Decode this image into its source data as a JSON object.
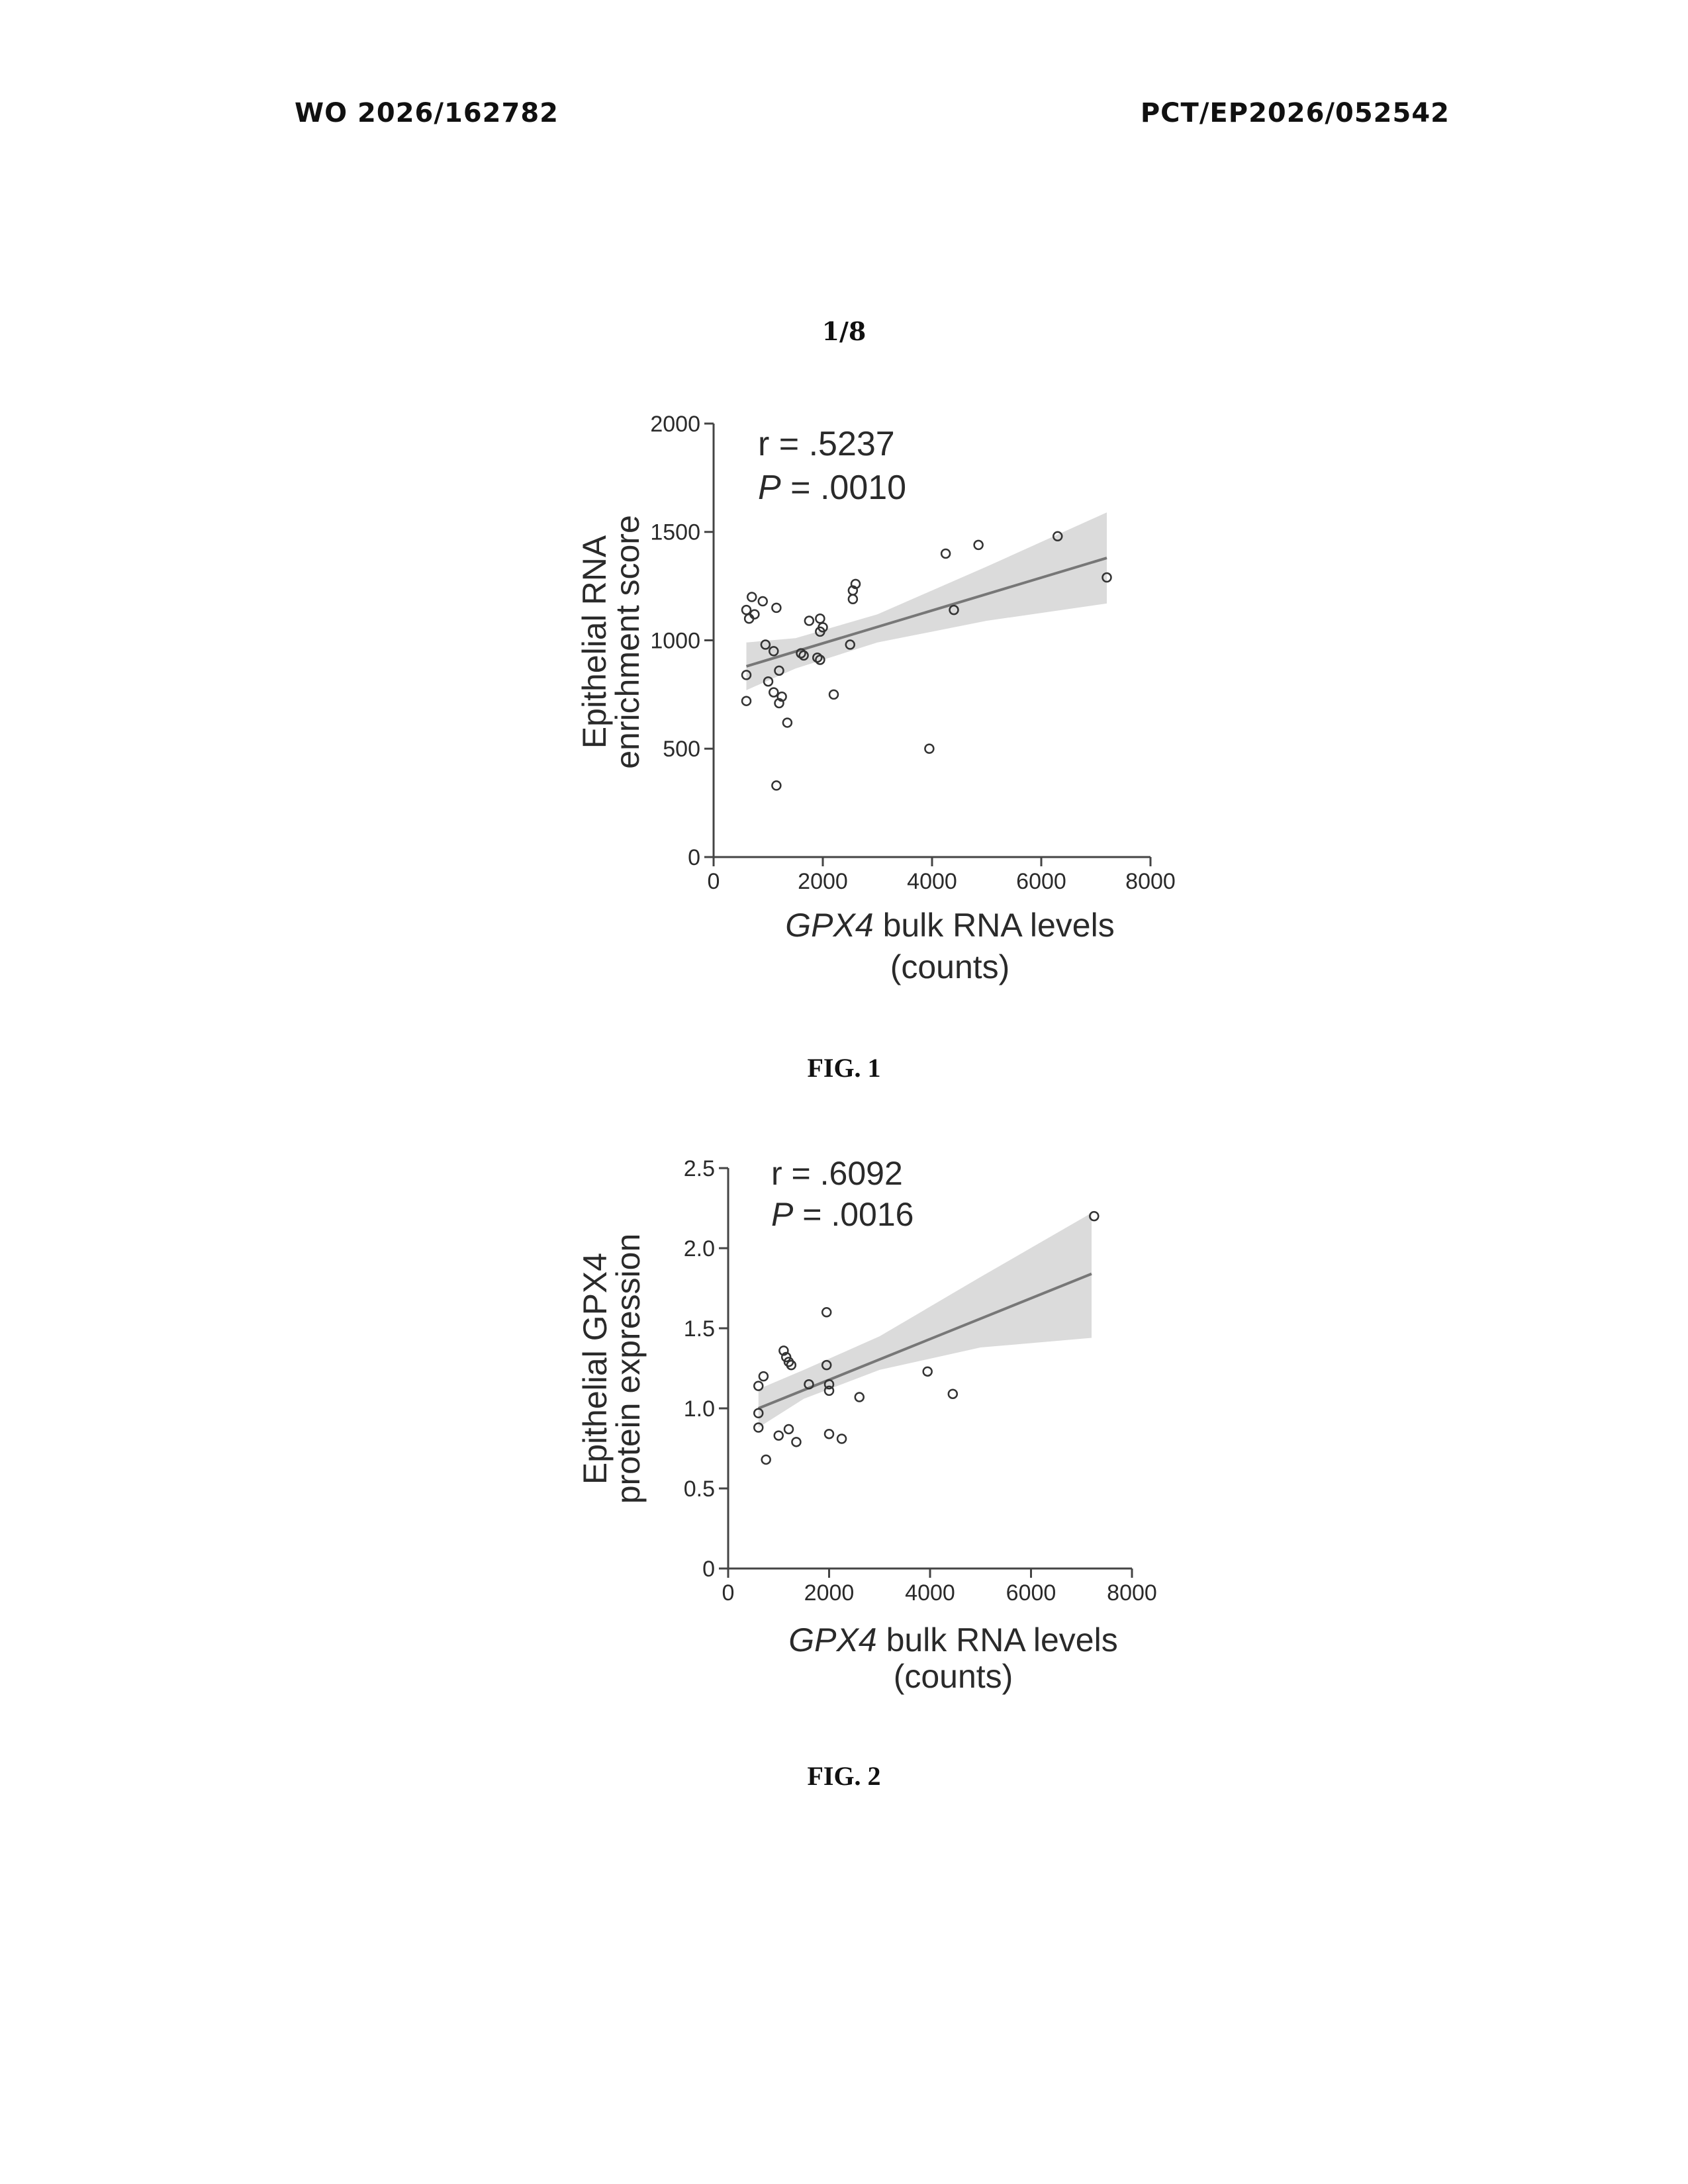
{
  "header": {
    "publication_number": "WO 2026/162782",
    "application_number": "PCT/EP2026/052542"
  },
  "sheet_label": "1/8",
  "figures": [
    {
      "caption": "FIG. 1"
    },
    {
      "caption": "FIG. 2"
    }
  ],
  "chart_data": [
    {
      "type": "scatter",
      "ylabel_lines": [
        "Epithelial RNA",
        "enrichment score"
      ],
      "xlabel_italic": "GPX4",
      "xlabel_rest": " bulk RNA levels",
      "xlabel_line2": "(counts)",
      "stat_r": "r = .5237",
      "stat_p_symbol": "P",
      "stat_p_rest": " = .0010",
      "xlim": [
        0,
        8000
      ],
      "ylim": [
        0,
        2000
      ],
      "xticks": [
        "0",
        "2000",
        "4000",
        "6000",
        "8000"
      ],
      "yticks": [
        "0",
        "500",
        "1000",
        "1500",
        "2000"
      ],
      "regression": {
        "x": [
          600,
          7200
        ],
        "y": [
          880,
          1380
        ]
      },
      "confidence_band": {
        "x": [
          600,
          1500,
          3000,
          5000,
          7200
        ],
        "lower": [
          770,
          870,
          990,
          1090,
          1170
        ],
        "upper": [
          990,
          1010,
          1120,
          1340,
          1590
        ]
      },
      "points": [
        {
          "x": 600,
          "y": 1140
        },
        {
          "x": 700,
          "y": 1200
        },
        {
          "x": 750,
          "y": 1120
        },
        {
          "x": 900,
          "y": 1180
        },
        {
          "x": 650,
          "y": 1100
        },
        {
          "x": 950,
          "y": 980
        },
        {
          "x": 1150,
          "y": 1150
        },
        {
          "x": 1100,
          "y": 950
        },
        {
          "x": 600,
          "y": 840
        },
        {
          "x": 1000,
          "y": 810
        },
        {
          "x": 1200,
          "y": 860
        },
        {
          "x": 1100,
          "y": 760
        },
        {
          "x": 1250,
          "y": 740
        },
        {
          "x": 1200,
          "y": 710
        },
        {
          "x": 600,
          "y": 720
        },
        {
          "x": 1350,
          "y": 620
        },
        {
          "x": 1150,
          "y": 330
        },
        {
          "x": 1600,
          "y": 940
        },
        {
          "x": 1650,
          "y": 930
        },
        {
          "x": 1750,
          "y": 1090
        },
        {
          "x": 1900,
          "y": 920
        },
        {
          "x": 1950,
          "y": 910
        },
        {
          "x": 1950,
          "y": 1100
        },
        {
          "x": 2000,
          "y": 1060
        },
        {
          "x": 1950,
          "y": 1040
        },
        {
          "x": 2200,
          "y": 750
        },
        {
          "x": 2500,
          "y": 980
        },
        {
          "x": 2550,
          "y": 1230
        },
        {
          "x": 2600,
          "y": 1260
        },
        {
          "x": 2550,
          "y": 1190
        },
        {
          "x": 3950,
          "y": 500
        },
        {
          "x": 4250,
          "y": 1400
        },
        {
          "x": 4400,
          "y": 1140
        },
        {
          "x": 4850,
          "y": 1440
        },
        {
          "x": 6300,
          "y": 1480
        },
        {
          "x": 7200,
          "y": 1290
        }
      ]
    },
    {
      "type": "scatter",
      "ylabel_lines": [
        "Epithelial GPX4",
        "protein expression"
      ],
      "xlabel_italic": "GPX4",
      "xlabel_rest": " bulk RNA levels",
      "xlabel_line2": "(counts)",
      "stat_r": "r = .6092",
      "stat_p_symbol": "P",
      "stat_p_rest": " = .0016",
      "xlim": [
        0,
        8000
      ],
      "ylim": [
        0,
        2.5
      ],
      "xticks": [
        "0",
        "2000",
        "4000",
        "6000",
        "8000"
      ],
      "yticks": [
        "0",
        "0.5",
        "1.0",
        "1.5",
        "2.0",
        "2.5"
      ],
      "regression": {
        "x": [
          600,
          7200
        ],
        "y": [
          1.0,
          1.84
        ]
      },
      "confidence_band": {
        "x": [
          600,
          1500,
          3000,
          5000,
          7200
        ],
        "lower": [
          0.88,
          1.06,
          1.24,
          1.38,
          1.44
        ],
        "upper": [
          1.12,
          1.24,
          1.45,
          1.82,
          2.22
        ]
      },
      "points": [
        {
          "x": 600,
          "y": 1.14
        },
        {
          "x": 700,
          "y": 1.2
        },
        {
          "x": 600,
          "y": 0.97
        },
        {
          "x": 600,
          "y": 0.88
        },
        {
          "x": 750,
          "y": 0.68
        },
        {
          "x": 1000,
          "y": 0.83
        },
        {
          "x": 1100,
          "y": 1.36
        },
        {
          "x": 1150,
          "y": 1.32
        },
        {
          "x": 1200,
          "y": 1.29
        },
        {
          "x": 1250,
          "y": 1.27
        },
        {
          "x": 1200,
          "y": 0.87
        },
        {
          "x": 1350,
          "y": 0.79
        },
        {
          "x": 1600,
          "y": 1.15
        },
        {
          "x": 1950,
          "y": 1.6
        },
        {
          "x": 1950,
          "y": 1.27
        },
        {
          "x": 2000,
          "y": 1.15
        },
        {
          "x": 2000,
          "y": 1.11
        },
        {
          "x": 2000,
          "y": 0.84
        },
        {
          "x": 2250,
          "y": 0.81
        },
        {
          "x": 2600,
          "y": 1.07
        },
        {
          "x": 3950,
          "y": 1.23
        },
        {
          "x": 4450,
          "y": 1.09
        },
        {
          "x": 7250,
          "y": 2.2
        }
      ]
    }
  ]
}
